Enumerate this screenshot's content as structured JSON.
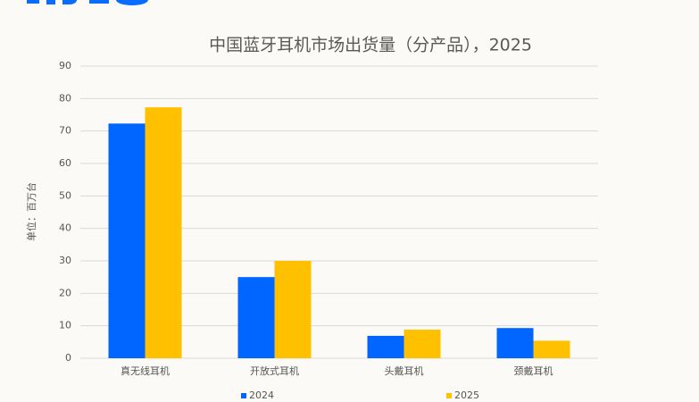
{
  "chart_data": {
    "type": "bar",
    "title": "中国蓝牙耳机市场出货量（分产品），2025",
    "y_label": "单位：百万台",
    "categories": [
      "真无线耳机",
      "开放式耳机",
      "头戴耳机",
      "颈戴耳机"
    ],
    "series": [
      {
        "name": "2024",
        "color": "#0066ff",
        "values": [
          72.3,
          25,
          6.9,
          9.3
        ]
      },
      {
        "name": "2025",
        "color": "#ffc000",
        "values": [
          77.3,
          30,
          8.8,
          5.4
        ]
      }
    ],
    "ylim": [
      0,
      90
    ],
    "yticks": [
      0,
      10,
      20,
      30,
      40,
      50,
      60,
      70,
      80,
      90
    ],
    "grid": true
  }
}
